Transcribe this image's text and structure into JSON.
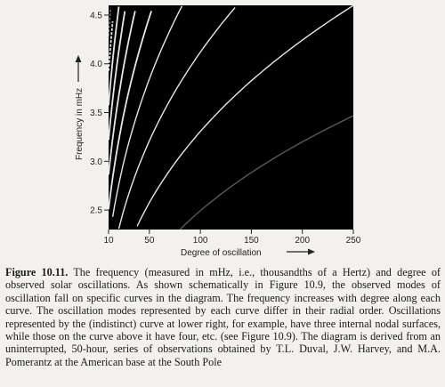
{
  "figure": {
    "xlabel": "Degree of oscillation",
    "ylabel": "Frequency in mHz",
    "xticks": [
      10,
      50,
      100,
      150,
      200,
      250
    ],
    "yticks": [
      2.5,
      3.0,
      3.5,
      4.0,
      4.5
    ],
    "xlim": [
      10,
      250
    ],
    "ylim": [
      2.3,
      4.6
    ],
    "background": "#000000",
    "ridge_color": "#ffffff",
    "axis_arrows": true
  },
  "caption": {
    "label": "Figure 10.11.",
    "text": " The frequency (measured in mHz, i.e., thousandths of a Hertz) and degree of observed solar oscillations. As shown schematically in Figure 10.9, the observed modes of oscillation fall on specific curves in the diagram. The frequency increases with degree along each curve. The oscillation modes represented by each curve differ in their radial order. Oscillations represented by the (indistinct) curve at lower right, for example, have three internal nodal surfaces, while those on the curve above it have four, etc. (see Figure 10.9). The diagram is derived from an uninterrupted, 50-hour, series of observations obtained by T.L. Duval, J.W. Harvey, and M.A. Pomerantz at the American base at the South Pole"
  }
}
